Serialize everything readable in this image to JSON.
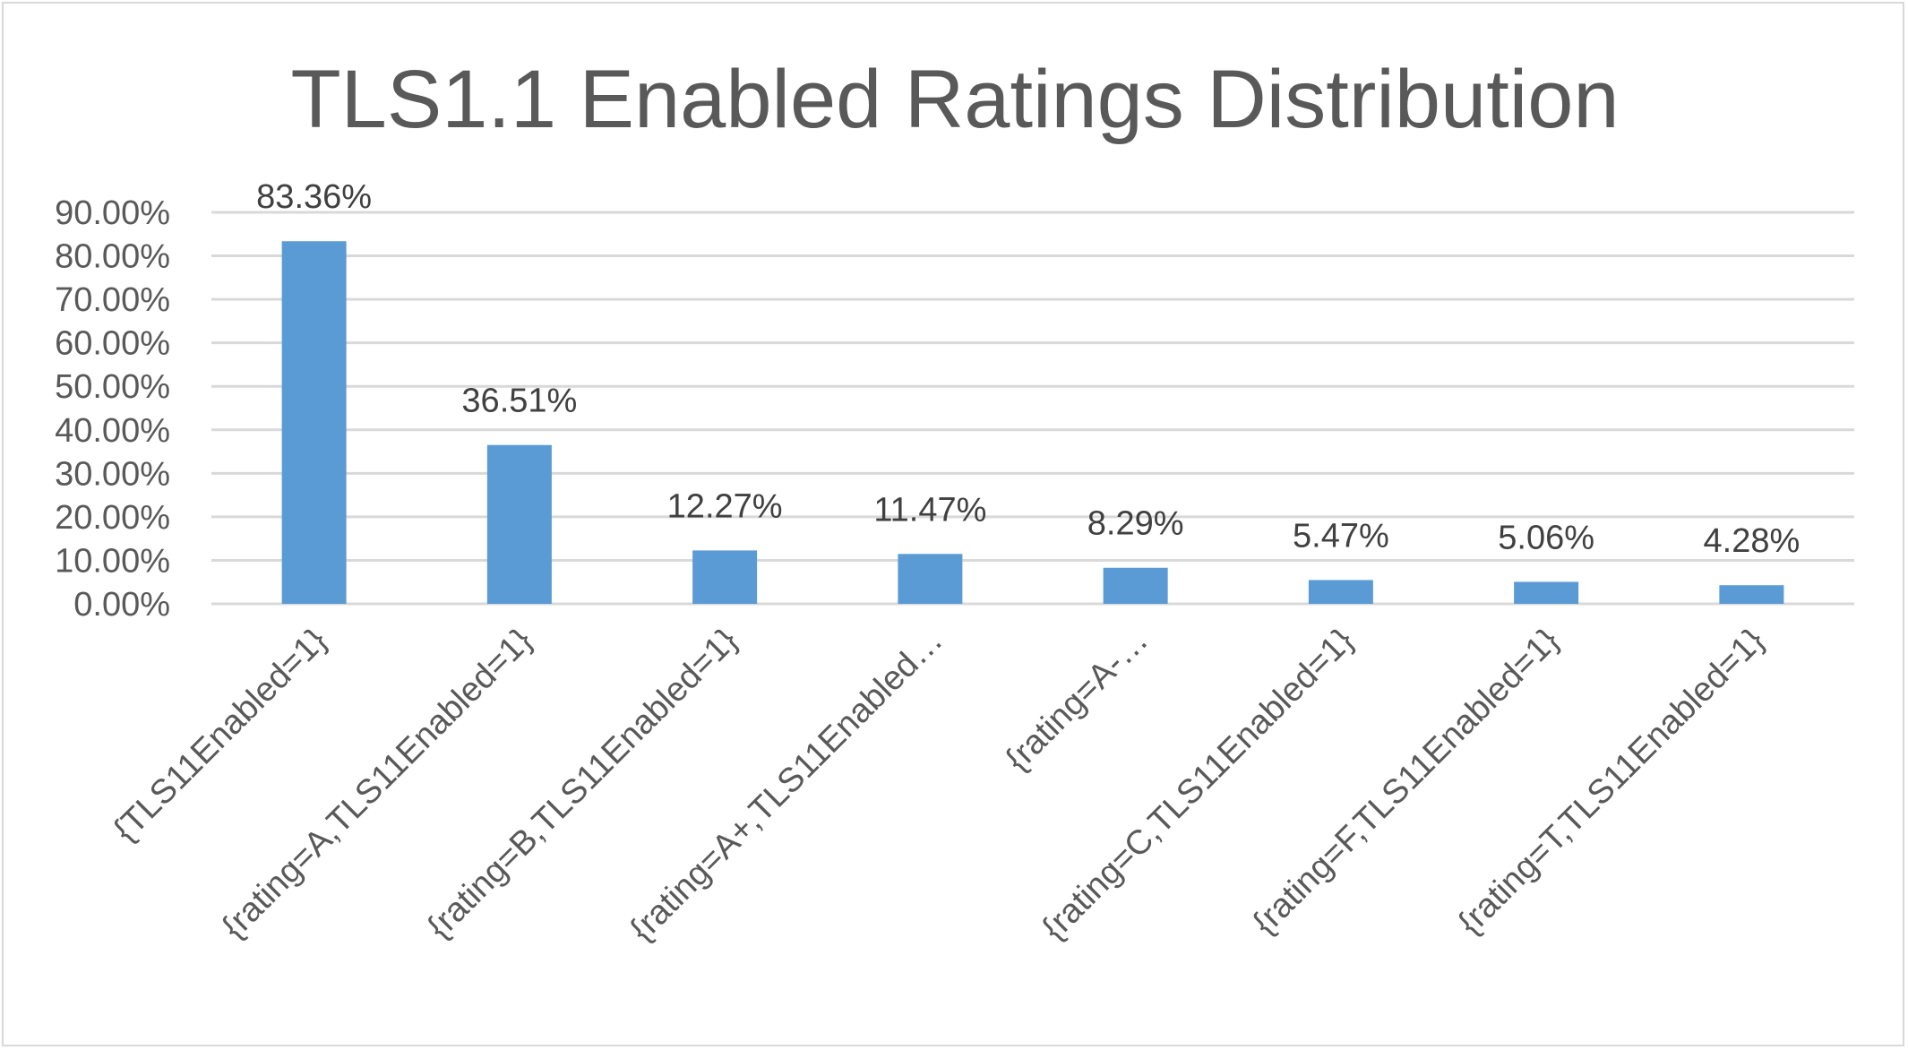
{
  "chart_data": {
    "type": "bar",
    "title": "TLS1.1 Enabled Ratings Distribution",
    "xlabel": "",
    "ylabel": "",
    "categories": [
      "{TLS11Enabled=1}",
      "{rating=A,TLS11Enabled=1}",
      "{rating=B,TLS11Enabled=1}",
      "{rating=A+,TLS11Enabled…",
      "{rating=A-…",
      "{rating=C,TLS11Enabled=1}",
      "{rating=F,TLS11Enabled=1}",
      "{rating=T,TLS11Enabled=1}"
    ],
    "values": [
      83.36,
      36.51,
      12.27,
      11.47,
      8.29,
      5.47,
      5.06,
      4.28
    ],
    "data_labels": [
      "83.36%",
      "36.51%",
      "12.27%",
      "11.47%",
      "8.29%",
      "5.47%",
      "5.06%",
      "4.28%"
    ],
    "ylim": [
      0,
      90
    ],
    "yticks": [
      0,
      10,
      20,
      30,
      40,
      50,
      60,
      70,
      80,
      90
    ],
    "ytick_labels": [
      "0.00%",
      "10.00%",
      "20.00%",
      "30.00%",
      "40.00%",
      "50.00%",
      "60.00%",
      "70.00%",
      "80.00%",
      "90.00%"
    ],
    "grid": true,
    "legend": "none",
    "colors": {
      "bar": "#5b9bd5",
      "grid": "#d9d9d9",
      "text": "#595959",
      "data_label": "#404040"
    }
  }
}
